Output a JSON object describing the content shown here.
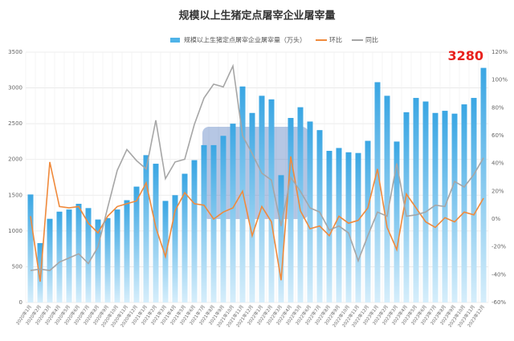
{
  "chart_data": {
    "type": "bar-line",
    "title": "规模以上生猪定点屠宰企业屠宰量",
    "categories": [
      "2020年1月",
      "2020年2月",
      "2020年3月",
      "2020年4月",
      "2020年5月",
      "2020年6月",
      "2020年7月",
      "2020年8月",
      "2020年9月",
      "2020年10月",
      "2020年11月",
      "2020年12月",
      "2021年1月",
      "2021年2月",
      "2021年3月",
      "2021年4月",
      "2021年5月",
      "2021年6月",
      "2021年7月",
      "2021年8月",
      "2021年9月",
      "2021年10月",
      "2021年11月",
      "2021年12月",
      "2022年1月",
      "2022年2月",
      "2022年3月",
      "2022年4月",
      "2022年5月",
      "2022年6月",
      "2022年7月",
      "2022年8月",
      "2022年9月",
      "2022年10月",
      "2022年11月",
      "2022年12月",
      "2023年1月",
      "2023年2月",
      "2023年3月",
      "2023年4月",
      "2023年5月",
      "2023年6月",
      "2023年7月",
      "2023年8月",
      "2023年9月",
      "2023年10月",
      "2023年11月",
      "2023年12月"
    ],
    "series": [
      {
        "name": "规模以上生猪定点屠宰企业屠宰量（万头）",
        "color": "#4fb3e8",
        "kind": "bar",
        "values": [
          1510,
          830,
          1170,
          1270,
          1300,
          1380,
          1320,
          1160,
          1180,
          1300,
          1430,
          1620,
          2060,
          1940,
          1420,
          1500,
          1800,
          1990,
          2200,
          2200,
          2330,
          2500,
          3020,
          2650,
          2890,
          2840,
          1780,
          2580,
          2730,
          2530,
          2410,
          2120,
          2160,
          2100,
          2090,
          2260,
          3080,
          2890,
          2250,
          2660,
          2860,
          2810,
          2650,
          2680,
          2640,
          2770,
          2860,
          3280
        ]
      },
      {
        "name": "环比",
        "color": "#f08a3c",
        "kind": "line",
        "axis": "y2",
        "values": [
          2,
          -45,
          41,
          9,
          8,
          9,
          -3,
          -10,
          2,
          9,
          11,
          13,
          26,
          -6,
          -27,
          6,
          19,
          11,
          10,
          0,
          5,
          8,
          20,
          -12,
          9,
          -2,
          -44,
          45,
          6,
          -7,
          -5,
          -12,
          2,
          -3,
          -1,
          8,
          36,
          -6,
          -22,
          18,
          8,
          -2,
          -6,
          1,
          -2,
          5,
          3,
          15
        ]
      },
      {
        "name": "同比",
        "color": "#a6a6a6",
        "kind": "line",
        "axis": "y2",
        "values": [
          -37,
          -36,
          -37,
          -31,
          -28,
          -25,
          -32,
          -20,
          8,
          35,
          50,
          42,
          36,
          71,
          29,
          41,
          43,
          68,
          87,
          97,
          95,
          110,
          60,
          47,
          33,
          28,
          -5,
          30,
          20,
          8,
          5,
          -8,
          -5,
          -10,
          -30,
          -12,
          5,
          2,
          40,
          2,
          3,
          5,
          10,
          9,
          27,
          23,
          32,
          44
        ]
      }
    ],
    "ylim": [
      0,
      3500
    ],
    "yticks": [
      0,
      500,
      1000,
      1500,
      2000,
      2500,
      3000,
      3500
    ],
    "y2lim": [
      -60,
      120
    ],
    "y2ticks": [
      {
        "value": -60,
        "label": "-60%"
      },
      {
        "value": -40,
        "label": "-40%"
      },
      {
        "value": -20,
        "label": "-20%"
      },
      {
        "value": 0,
        "label": "0%"
      },
      {
        "value": 20,
        "label": "20%"
      },
      {
        "value": 40,
        "label": "40%"
      },
      {
        "value": 60,
        "label": "60%"
      },
      {
        "value": 80,
        "label": "80%"
      },
      {
        "value": 100,
        "label": "100%"
      },
      {
        "value": 120,
        "label": "120%"
      }
    ],
    "grid": true,
    "annotations": [
      {
        "text": "3280"
      }
    ]
  }
}
